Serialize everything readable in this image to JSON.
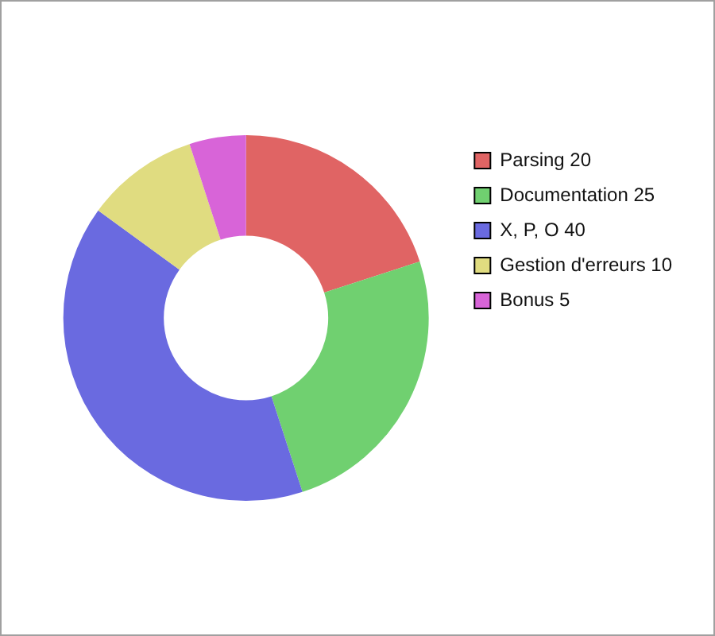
{
  "chart_data": {
    "type": "donut",
    "categories": [
      "Parsing 20",
      "Documentation 25",
      "X, P, O 40",
      "Gestion d'erreurs 10",
      "Bonus 5"
    ],
    "values": [
      20,
      25,
      40,
      10,
      5
    ],
    "colors": [
      "#e06464",
      "#70d070",
      "#6a6ae0",
      "#e0dc80",
      "#d864d8"
    ],
    "legend": "right"
  }
}
